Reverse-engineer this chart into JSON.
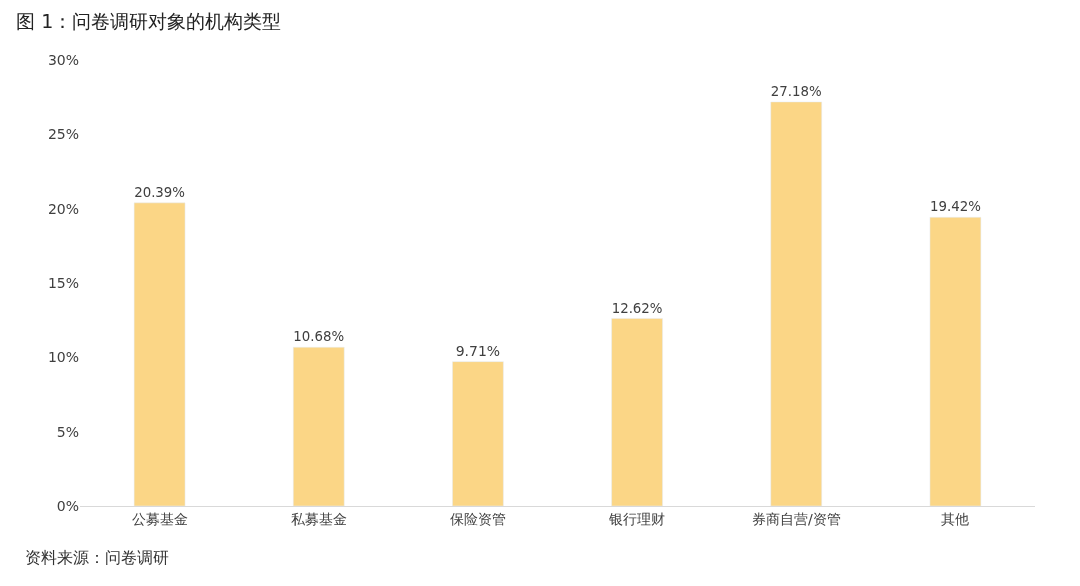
{
  "chart_data": {
    "type": "bar",
    "title": "图 1：问卷调研对象的机构类型",
    "categories": [
      "公募基金",
      "私募基金",
      "保险资管",
      "银行理财",
      "券商自营/资管",
      "其他"
    ],
    "values": [
      20.39,
      10.68,
      9.71,
      12.62,
      27.18,
      19.42
    ],
    "value_labels": [
      "20.39%",
      "10.68%",
      "9.71%",
      "12.62%",
      "27.18%",
      "19.42%"
    ],
    "color": "#fbd686",
    "ylim": [
      0,
      30
    ],
    "yticks": [
      {
        "value": 0,
        "label": "0%"
      },
      {
        "value": 5,
        "label": "5%"
      },
      {
        "value": 10,
        "label": "10%"
      },
      {
        "value": 15,
        "label": "15%"
      },
      {
        "value": 20,
        "label": "20%"
      },
      {
        "value": 25,
        "label": "25%"
      },
      {
        "value": 30,
        "label": "30%"
      }
    ],
    "legend": false,
    "annotations": [
      "资料来源：问卷调研"
    ]
  }
}
